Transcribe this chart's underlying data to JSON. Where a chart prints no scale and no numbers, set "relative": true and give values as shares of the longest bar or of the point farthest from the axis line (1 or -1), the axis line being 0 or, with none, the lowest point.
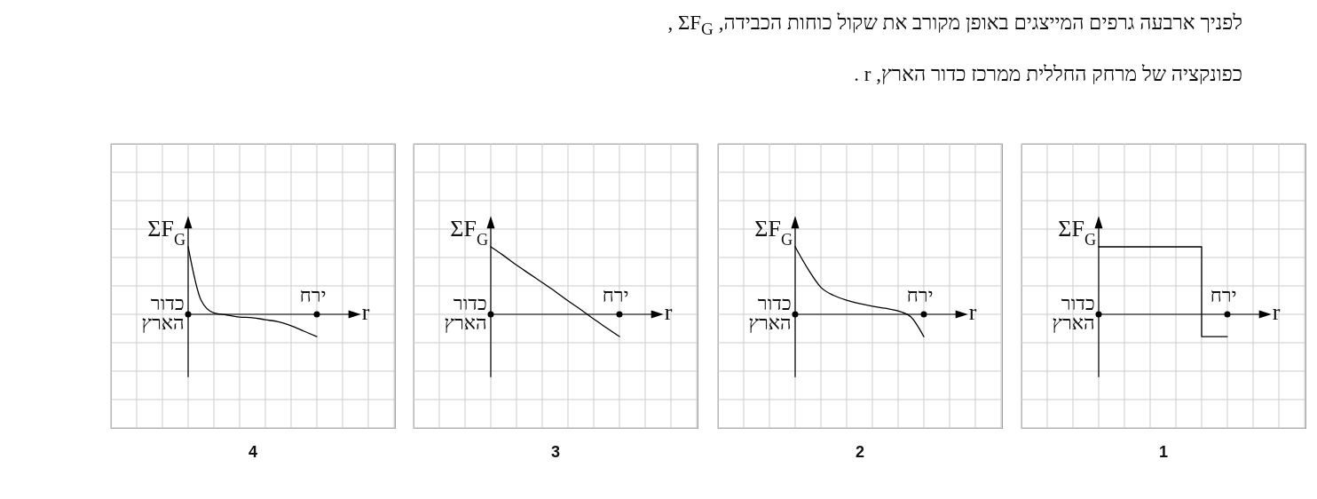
{
  "chart_data": [
    {
      "type": "other",
      "title": "לפניך ארבעה גרפים המייצגים באופן מקורב את שקול כוחות הכבידה, ΣF$_{G}$ ,",
      "subtitle": "כפונקציה של מרחק החללית ממרכז כדור הארץ, r ."
    },
    {
      "type": "step",
      "title": "1",
      "xlabel": "r",
      "ylabel": "ΣF$_{G}$",
      "annotations": [
        "כדור הארץ",
        "ירח"
      ],
      "relative": true,
      "grid": true,
      "color": "#000000",
      "categories": [
        null,
        null,
        null,
        null,
        null,
        null,
        null,
        null,
        null,
        null,
        null,
        null,
        null,
        null,
        null,
        null,
        null,
        null,
        null,
        null,
        null,
        null,
        null
      ],
      "values": [
        null,
        null,
        null,
        null,
        null,
        null,
        1,
        1,
        1,
        1,
        1,
        1,
        1,
        1,
        -0.33,
        -0.33,
        -0.33,
        null,
        null,
        null,
        null,
        null,
        null
      ]
    },
    {
      "type": "line",
      "title": "2",
      "xlabel": "r",
      "ylabel": "ΣF$_{G}$",
      "annotations": [
        "כדור הארץ",
        "ירח"
      ],
      "relative": true,
      "grid": true,
      "color": "#000000",
      "categories": [
        null,
        null,
        null,
        null,
        null,
        null,
        null,
        null,
        null,
        null,
        null,
        null,
        null,
        null,
        null,
        null,
        null,
        null,
        null,
        null,
        null,
        null,
        null
      ],
      "values": [
        null,
        null,
        null,
        null,
        null,
        null,
        1,
        0.67,
        0.4,
        0.28,
        0.21,
        0.16,
        0.12,
        0.09,
        0.05,
        -0.04,
        -0.33,
        null,
        null,
        null,
        null,
        null,
        null
      ]
    },
    {
      "type": "line",
      "title": "3",
      "xlabel": "r",
      "ylabel": "ΣF$_{G}$",
      "annotations": [
        "כדור הארץ",
        "ירח"
      ],
      "relative": true,
      "grid": true,
      "color": "#000000",
      "categories": [
        null,
        null,
        null,
        null,
        null,
        null,
        null,
        null,
        null,
        null,
        null,
        null,
        null,
        null,
        null,
        null,
        null,
        null,
        null,
        null,
        null,
        null,
        null
      ],
      "values": [
        null,
        null,
        null,
        null,
        null,
        null,
        1,
        0.87,
        0.73,
        0.6,
        0.47,
        0.34,
        0.2,
        0.07,
        -0.07,
        -0.2,
        -0.33,
        null,
        null,
        null,
        null,
        null,
        null
      ]
    },
    {
      "type": "line",
      "title": "4",
      "xlabel": "r",
      "ylabel": "ΣF$_{G}$",
      "annotations": [
        "כדור הארץ",
        "ירח"
      ],
      "relative": true,
      "grid": true,
      "color": "#000000",
      "categories": [
        null,
        null,
        null,
        null,
        null,
        null,
        null,
        null,
        null,
        null,
        null,
        null,
        null,
        null,
        null,
        null,
        null,
        null,
        null,
        null,
        null,
        null,
        null
      ],
      "values": [
        null,
        null,
        null,
        null,
        null,
        null,
        1,
        0.21,
        0.02,
        -0.01,
        -0.04,
        -0.05,
        -0.08,
        -0.11,
        -0.17,
        -0.25,
        -0.33,
        null,
        null,
        null,
        null,
        null,
        null
      ]
    }
  ]
}
